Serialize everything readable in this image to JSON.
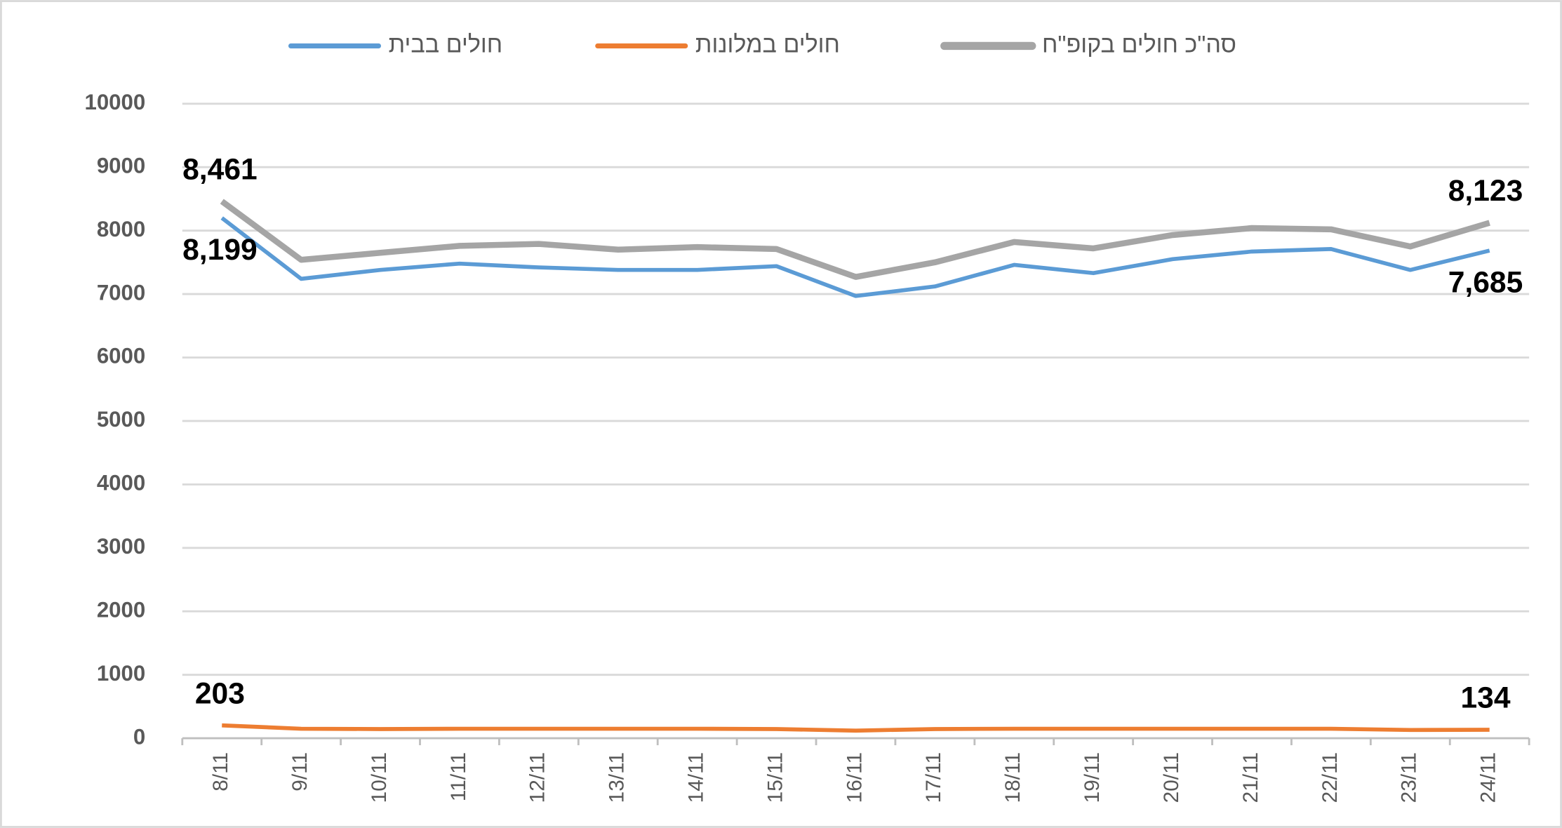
{
  "chart_data": {
    "type": "line",
    "categories": [
      "8/11",
      "9/11",
      "10/11",
      "11/11",
      "12/11",
      "13/11",
      "14/11",
      "15/11",
      "16/11",
      "17/11",
      "18/11",
      "19/11",
      "20/11",
      "21/11",
      "22/11",
      "23/11",
      "24/11"
    ],
    "series": [
      {
        "name": "חולים בבית",
        "color": "#5b9bd5",
        "values": [
          8199,
          7240,
          7380,
          7480,
          7420,
          7380,
          7380,
          7440,
          6970,
          7120,
          7460,
          7330,
          7550,
          7670,
          7710,
          7380,
          7685
        ],
        "value_labels": [
          "8,199",
          null,
          null,
          null,
          null,
          null,
          null,
          null,
          null,
          null,
          null,
          null,
          null,
          null,
          null,
          null,
          "7,685"
        ]
      },
      {
        "name": "חולים במלונות",
        "color": "#ed7d31",
        "values": [
          203,
          150,
          145,
          150,
          150,
          150,
          150,
          145,
          120,
          145,
          150,
          150,
          150,
          150,
          150,
          130,
          134
        ],
        "value_labels": [
          "203",
          null,
          null,
          null,
          null,
          null,
          null,
          null,
          null,
          null,
          null,
          null,
          null,
          null,
          null,
          null,
          "134"
        ]
      },
      {
        "name": "סה\"כ חולים בקופ\"ח",
        "color": "#a5a5a5",
        "values": [
          8461,
          7540,
          7650,
          7760,
          7790,
          7700,
          7740,
          7710,
          7270,
          7500,
          7820,
          7720,
          7930,
          8040,
          8020,
          7750,
          8123
        ],
        "value_labels": [
          "8,461",
          null,
          null,
          null,
          null,
          null,
          null,
          null,
          null,
          null,
          null,
          null,
          null,
          null,
          null,
          null,
          "8,123"
        ]
      }
    ],
    "ylim": [
      0,
      10000
    ],
    "yticks": [
      0,
      1000,
      2000,
      3000,
      4000,
      5000,
      6000,
      7000,
      8000,
      9000,
      10000
    ],
    "grid": true,
    "legend": "top"
  }
}
